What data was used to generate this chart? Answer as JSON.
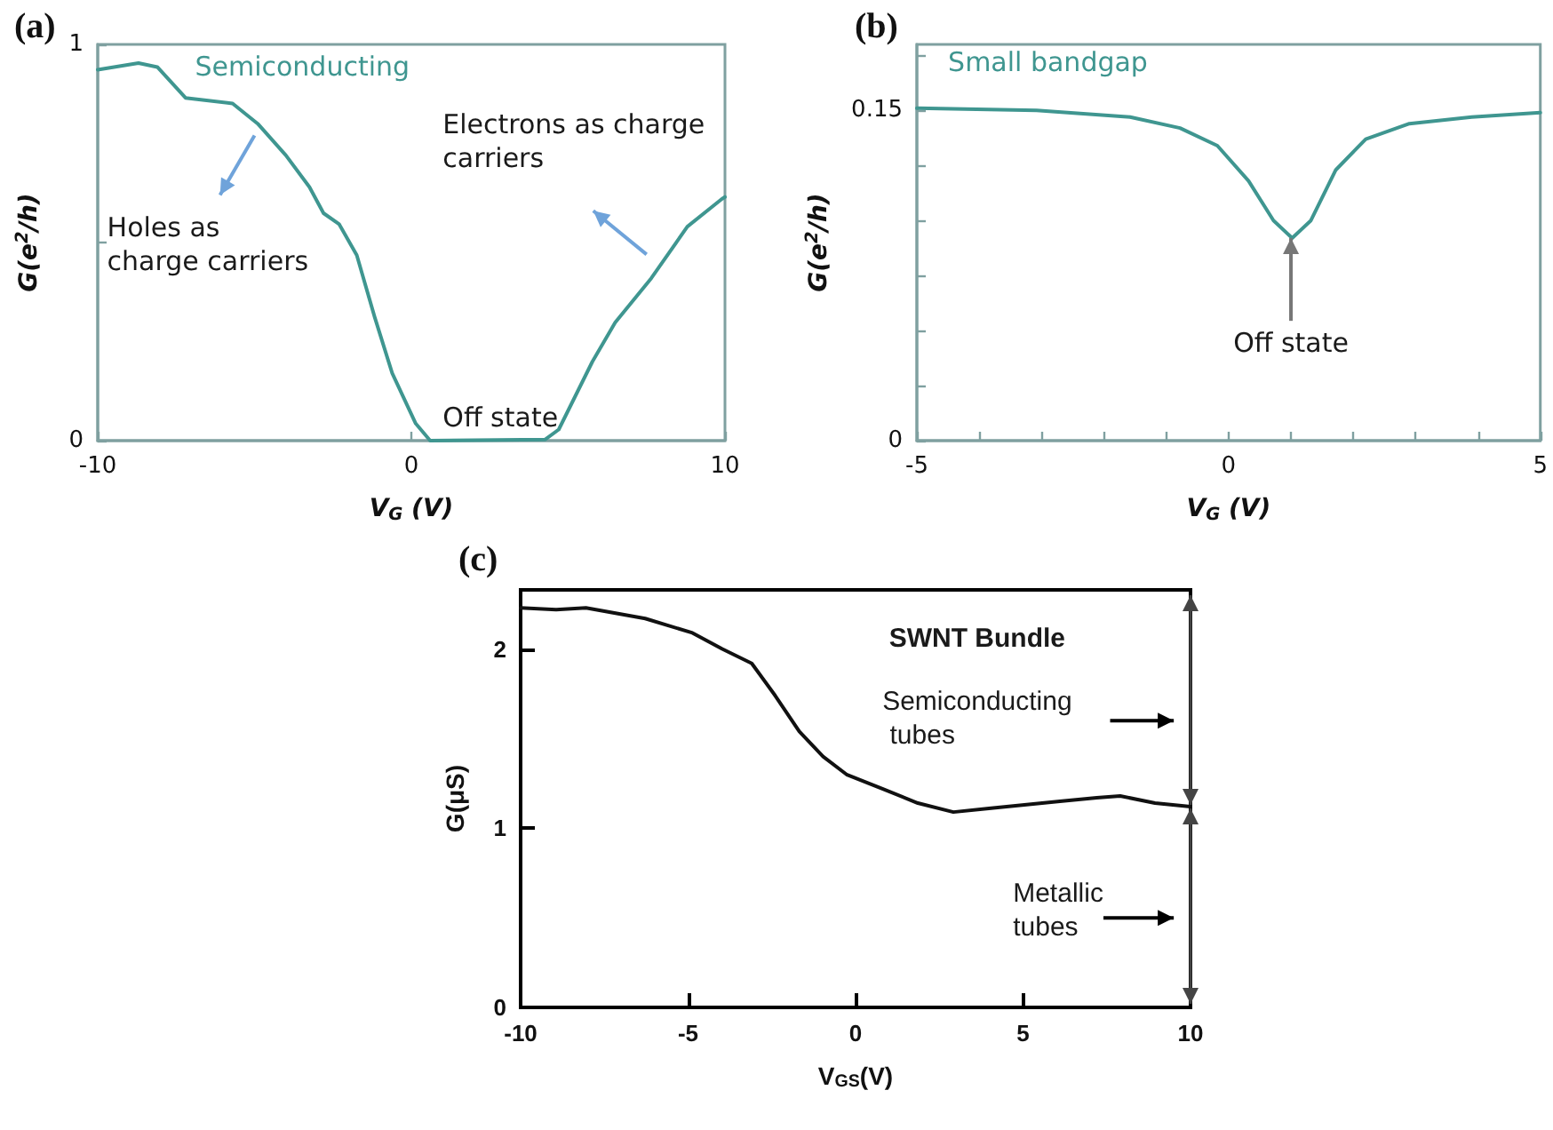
{
  "chart_data": [
    {
      "type": "line",
      "title": "(a)",
      "xlabel": "V$_{G}$ (V)",
      "ylabel": "G(e$^{2}$/h)",
      "x": [
        -10,
        -8.7,
        -8.1,
        -7.2,
        -5.7,
        -4.9,
        -4.0,
        -3.25,
        -2.8,
        -2.3,
        -1.74,
        -1.17,
        -0.61,
        0.14,
        0.6,
        4.27,
        4.7,
        5.77,
        6.5,
        7.65,
        8.8,
        9.9,
        10
      ],
      "series": [
        {
          "name": "Semiconducting",
          "color": "#3f9690",
          "values": [
            0.936,
            0.953,
            0.943,
            0.865,
            0.851,
            0.8,
            0.72,
            0.64,
            0.574,
            0.546,
            0.468,
            0.312,
            0.17,
            0.043,
            0,
            0.003,
            0.028,
            0.199,
            0.298,
            0.41,
            0.54,
            0.61,
            0.615
          ]
        }
      ],
      "xlim": [
        -10,
        10
      ],
      "xticks": [
        -10,
        0,
        10
      ],
      "ylim": [
        0,
        1
      ],
      "yticks": [
        0,
        {
          "value": 0.5,
          "label": null
        },
        1
      ],
      "annotations": [
        "Holes as charge carriers",
        "Electrons as charge carriers",
        "Off state"
      ]
    },
    {
      "type": "line",
      "title": "(b)",
      "xlabel": "V$_{G}$ (V)",
      "ylabel": "G(e$^{2}$/h)",
      "x": [
        -5,
        -3.08,
        -1.58,
        -0.78,
        -0.18,
        0.32,
        0.72,
        1.02,
        1.32,
        1.72,
        2.2,
        2.9,
        3.9,
        5
      ],
      "series": [
        {
          "name": "Small bandgap",
          "color": "#3f9690",
          "values": [
            0.151,
            0.15,
            0.147,
            0.142,
            0.134,
            0.118,
            0.1,
            0.092,
            0.1,
            0.123,
            0.137,
            0.144,
            0.147,
            0.149
          ]
        }
      ],
      "xlim": [
        -5,
        5
      ],
      "xticks": [
        -5,
        {
          "value": -4,
          "label": null
        },
        {
          "value": -3,
          "label": null
        },
        {
          "value": -2,
          "label": null
        },
        {
          "value": -1,
          "label": null
        },
        0,
        {
          "value": 1,
          "label": null
        },
        {
          "value": 2,
          "label": null
        },
        {
          "value": 3,
          "label": null
        },
        {
          "value": 4,
          "label": null
        },
        5
      ],
      "ylim": [
        0,
        0.18
      ],
      "yticks": [
        0,
        {
          "value": 0.025,
          "label": null
        },
        {
          "value": 0.05,
          "label": null
        },
        {
          "value": 0.075,
          "label": null
        },
        {
          "value": 0.1,
          "label": null
        },
        {
          "value": 0.125,
          "label": null
        },
        0.15,
        {
          "value": 0.175,
          "label": null
        }
      ],
      "annotations": [
        {
          "text": "Off state",
          "x": 1,
          "y": 0.092
        }
      ]
    },
    {
      "type": "line",
      "title": "(c)",
      "xlabel": "V$_{GS}$(V)",
      "ylabel": "G(μS)",
      "x": [
        -10,
        -8.94,
        -8.05,
        -6.28,
        -4.87,
        -3.98,
        -3.1,
        -2.4,
        -1.68,
        -0.97,
        -0.27,
        0.8,
        1.86,
        2.92,
        3.98,
        5.04,
        6.1,
        7.2,
        7.9,
        8.94,
        10
      ],
      "series": [
        {
          "color": "#111111",
          "values": [
            2.23,
            2.22,
            2.23,
            2.17,
            2.09,
            2.0,
            1.92,
            1.74,
            1.54,
            1.4,
            1.3,
            1.22,
            1.14,
            1.09,
            1.11,
            1.13,
            1.15,
            1.17,
            1.18,
            1.14,
            1.12
          ]
        }
      ],
      "xlim": [
        -10,
        10
      ],
      "xticks": [
        -10,
        -5,
        0,
        5,
        10
      ],
      "ylim": [
        0,
        2.33
      ],
      "yticks": [
        0,
        1,
        2
      ],
      "annotations": [
        "SWNT Bundle",
        "Semiconducting tubes",
        "Metallic tubes"
      ]
    }
  ]
}
